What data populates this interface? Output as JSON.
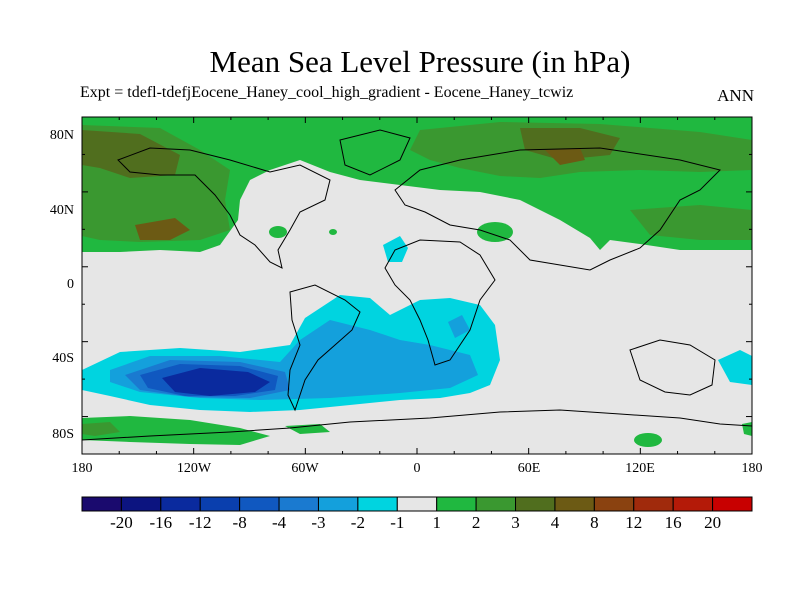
{
  "title": "Mean Sea Level Pressure (in hPa)",
  "subtitle": "Expt = tdefl-tdefjEocene_Haney_cool_high_gradient - Eocene_Haney_tcwiz",
  "season": "ANN",
  "lat_labels": [
    "80N",
    "40N",
    "0",
    "40S",
    "80S"
  ],
  "lon_labels": [
    "180",
    "120W",
    "60W",
    "0",
    "60E",
    "120E",
    "180"
  ],
  "colorbar": {
    "colors": [
      "#1a0a6e",
      "#0c1480",
      "#0a2a9e",
      "#0a3fae",
      "#1058c0",
      "#1a7ad0",
      "#14a0dc",
      "#00d4e0",
      "#e6e6e6",
      "#20b840",
      "#3a9830",
      "#506e1e",
      "#6c5a14",
      "#8a4210",
      "#a02a0c",
      "#b41a08",
      "#c80000"
    ],
    "labels": [
      "-20",
      "-16",
      "-12",
      "-8",
      "-4",
      "-3",
      "-2",
      "-1",
      "1",
      "2",
      "3",
      "4",
      "8",
      "12",
      "16",
      "20"
    ]
  }
}
